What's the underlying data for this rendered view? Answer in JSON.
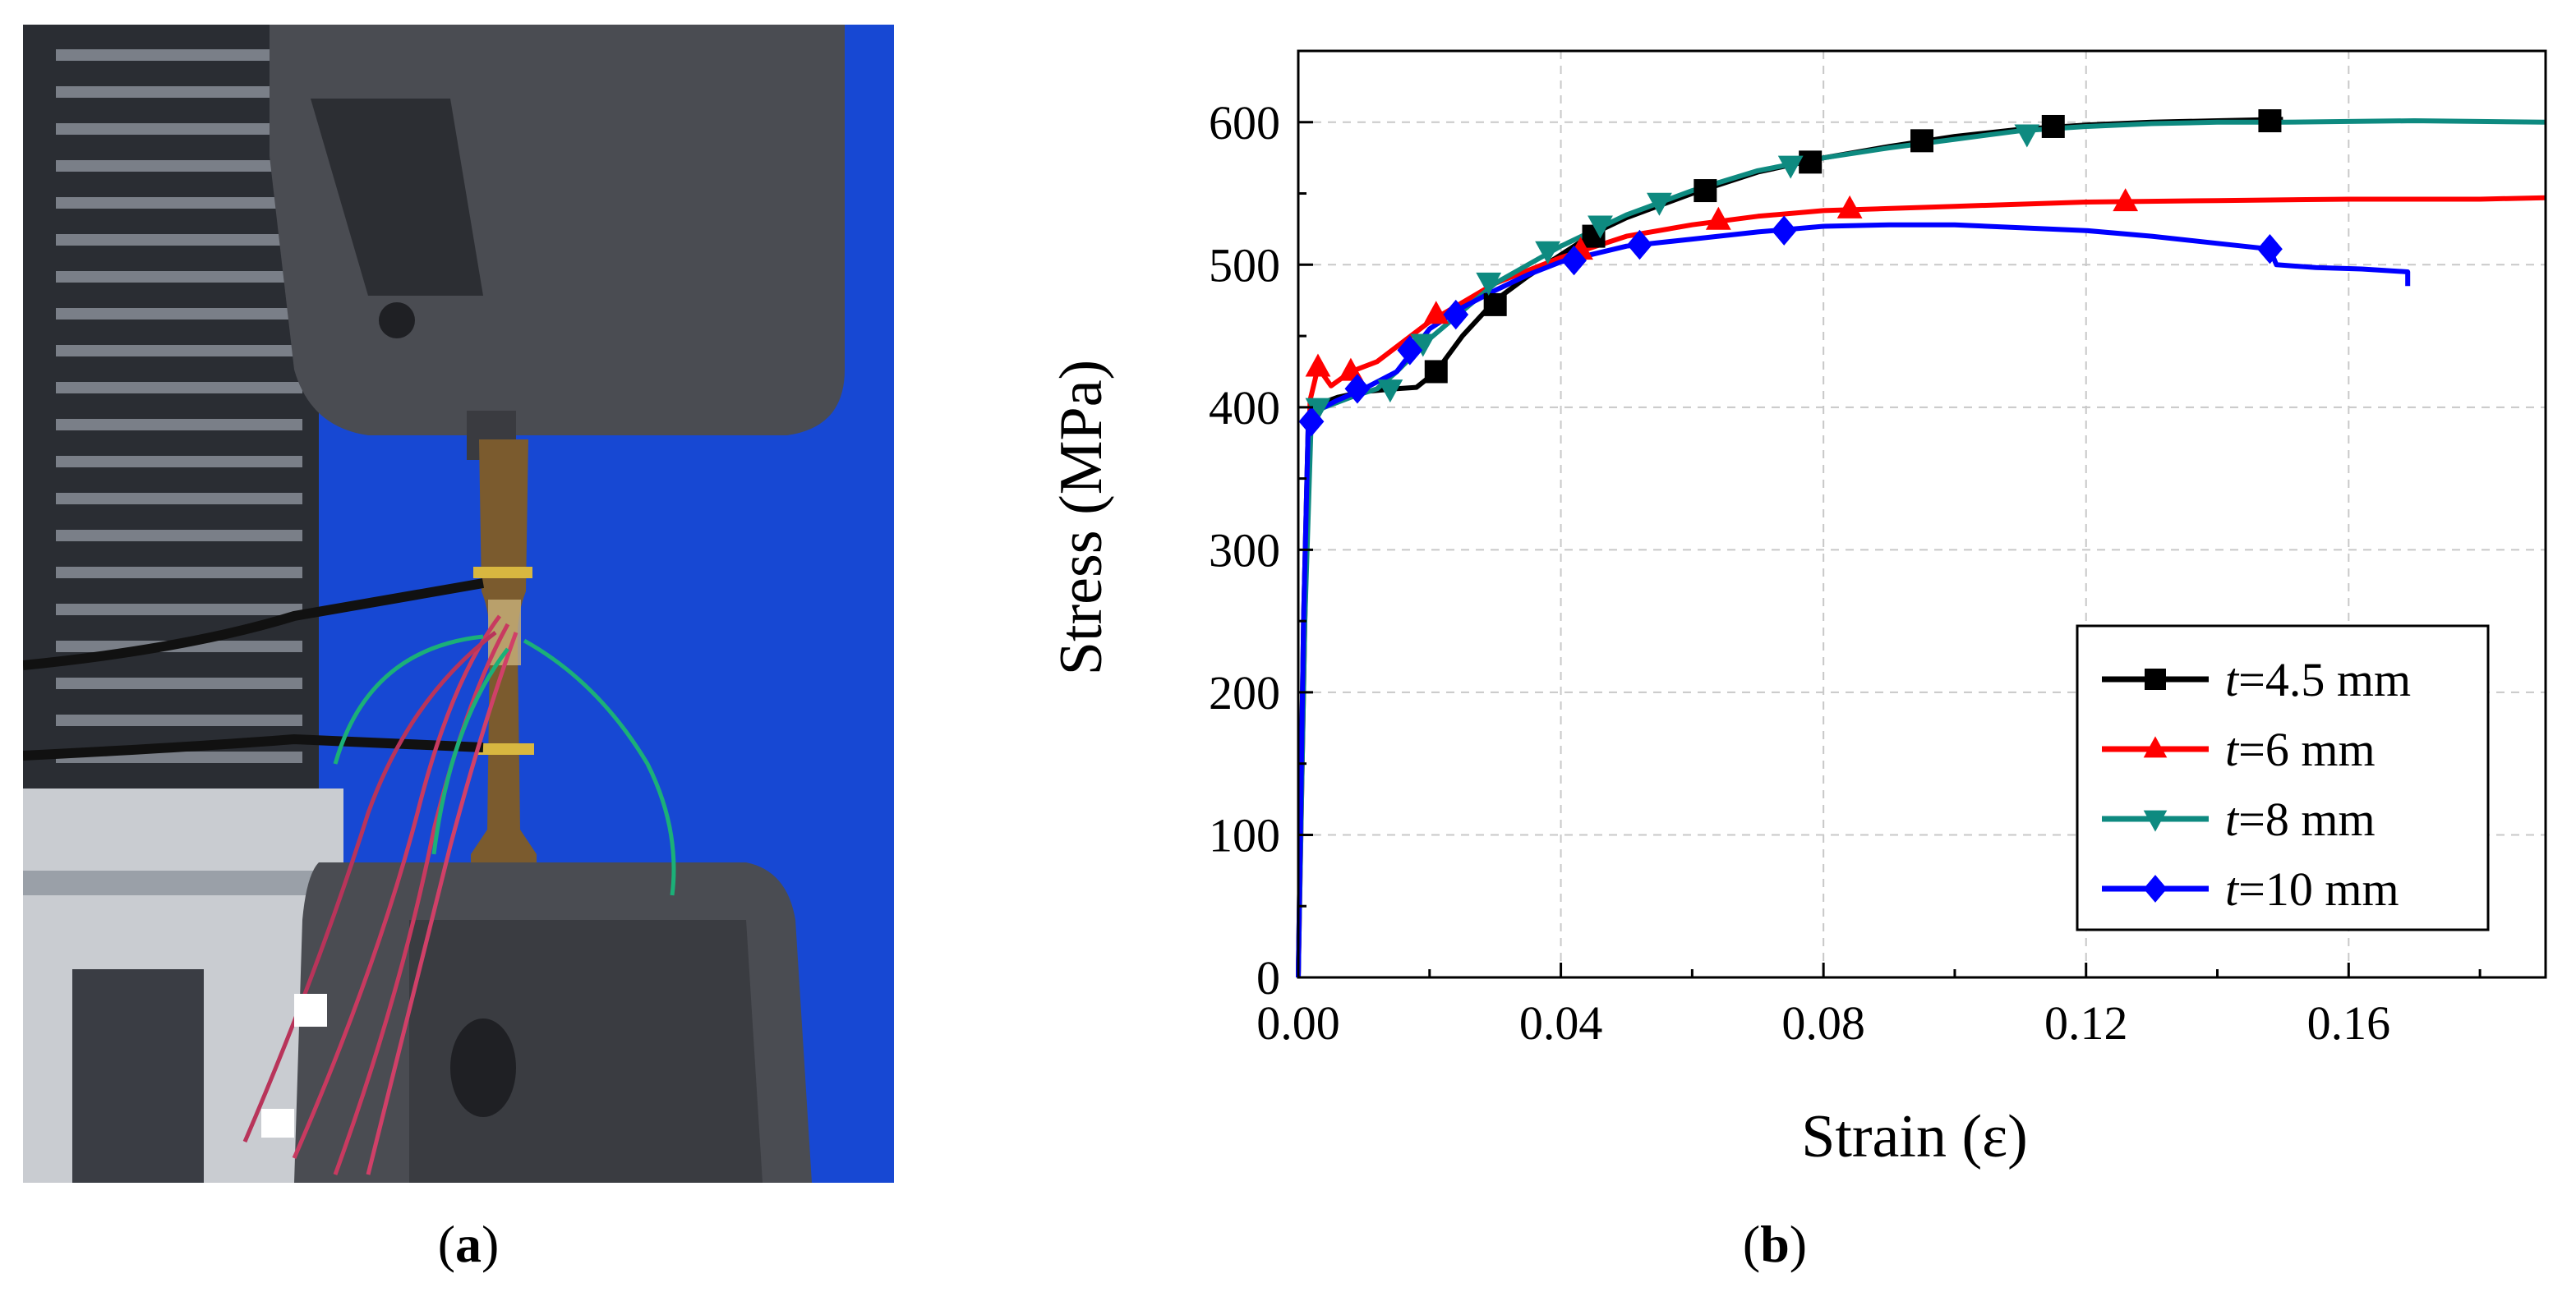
{
  "captions": {
    "a": "a",
    "b": "b",
    "open": "(",
    "close": ")"
  },
  "photo": {
    "description_icon": "tensile-test-photo"
  },
  "chart_data": {
    "type": "line",
    "title": "",
    "xlabel": "Strain (ε)",
    "ylabel": "Stress (MPa)",
    "xlim": [
      0,
      0.19
    ],
    "ylim": [
      0,
      650
    ],
    "x_ticks": [
      0.0,
      0.04,
      0.08,
      0.12,
      0.16
    ],
    "x_tick_labels": [
      "0.00",
      "0.04",
      "0.08",
      "0.12",
      "0.16"
    ],
    "y_ticks": [
      0,
      100,
      200,
      300,
      400,
      500,
      600
    ],
    "y_tick_labels": [
      "0",
      "100",
      "200",
      "300",
      "400",
      "500",
      "600"
    ],
    "grid": true,
    "legend_position": "bottom-right",
    "series": [
      {
        "name": "t=4.5 mm",
        "italic": "t",
        "rest": "=4.5 mm",
        "color": "#000000",
        "marker": "square",
        "points": [
          [
            0,
            0
          ],
          [
            0.0008,
            250
          ],
          [
            0.0015,
            385
          ],
          [
            0.003,
            402
          ],
          [
            0.006,
            407
          ],
          [
            0.01,
            411
          ],
          [
            0.015,
            413
          ],
          [
            0.018,
            414
          ],
          [
            0.021,
            425
          ],
          [
            0.025,
            450
          ],
          [
            0.03,
            475
          ],
          [
            0.035,
            492
          ],
          [
            0.04,
            507
          ],
          [
            0.045,
            522
          ],
          [
            0.05,
            533
          ],
          [
            0.06,
            550
          ],
          [
            0.07,
            565
          ],
          [
            0.08,
            575
          ],
          [
            0.09,
            583
          ],
          [
            0.1,
            590
          ],
          [
            0.11,
            595
          ],
          [
            0.12,
            598
          ],
          [
            0.13,
            600
          ],
          [
            0.14,
            601
          ],
          [
            0.15,
            602
          ]
        ],
        "markers": [
          [
            0.021,
            425
          ],
          [
            0.03,
            472
          ],
          [
            0.045,
            520
          ],
          [
            0.062,
            552
          ],
          [
            0.078,
            572
          ],
          [
            0.095,
            587
          ],
          [
            0.115,
            597
          ],
          [
            0.148,
            601
          ]
        ]
      },
      {
        "name": "t=6 mm",
        "italic": "t",
        "rest": "=6 mm",
        "color": "#ff0000",
        "marker": "triangle-up",
        "points": [
          [
            0,
            0
          ],
          [
            0.001,
            250
          ],
          [
            0.0018,
            405
          ],
          [
            0.003,
            428
          ],
          [
            0.005,
            415
          ],
          [
            0.008,
            425
          ],
          [
            0.012,
            432
          ],
          [
            0.02,
            460
          ],
          [
            0.03,
            487
          ],
          [
            0.04,
            505
          ],
          [
            0.05,
            520
          ],
          [
            0.06,
            528
          ],
          [
            0.07,
            534
          ],
          [
            0.08,
            538
          ],
          [
            0.1,
            541
          ],
          [
            0.12,
            544
          ],
          [
            0.14,
            545
          ],
          [
            0.16,
            546
          ],
          [
            0.18,
            546
          ],
          [
            0.19,
            547
          ]
        ],
        "markers": [
          [
            0.003,
            428
          ],
          [
            0.008,
            425
          ],
          [
            0.021,
            465
          ],
          [
            0.043,
            510
          ],
          [
            0.064,
            531
          ],
          [
            0.084,
            539
          ],
          [
            0.126,
            544
          ]
        ]
      },
      {
        "name": "t=8 mm",
        "italic": "t",
        "rest": "=8 mm",
        "color": "#0e8a80",
        "marker": "triangle-down",
        "points": [
          [
            0,
            0
          ],
          [
            0.001,
            250
          ],
          [
            0.002,
            395
          ],
          [
            0.004,
            400
          ],
          [
            0.008,
            407
          ],
          [
            0.012,
            413
          ],
          [
            0.015,
            425
          ],
          [
            0.02,
            448
          ],
          [
            0.03,
            487
          ],
          [
            0.04,
            513
          ],
          [
            0.05,
            535
          ],
          [
            0.06,
            552
          ],
          [
            0.07,
            566
          ],
          [
            0.08,
            575
          ],
          [
            0.09,
            582
          ],
          [
            0.1,
            588
          ],
          [
            0.11,
            594
          ],
          [
            0.12,
            597
          ],
          [
            0.13,
            599
          ],
          [
            0.14,
            600
          ],
          [
            0.15,
            600
          ],
          [
            0.17,
            601
          ],
          [
            0.19,
            600
          ]
        ],
        "markers": [
          [
            0.003,
            400
          ],
          [
            0.014,
            413
          ],
          [
            0.019,
            445
          ],
          [
            0.029,
            488
          ],
          [
            0.038,
            510
          ],
          [
            0.046,
            528
          ],
          [
            0.055,
            544
          ],
          [
            0.075,
            570
          ],
          [
            0.111,
            592
          ]
        ]
      },
      {
        "name": "t=10 mm",
        "italic": "t",
        "rest": "=10 mm",
        "color": "#0000ff",
        "marker": "diamond",
        "points": [
          [
            0,
            0
          ],
          [
            0.0008,
            250
          ],
          [
            0.0015,
            385
          ],
          [
            0.003,
            398
          ],
          [
            0.006,
            405
          ],
          [
            0.01,
            413
          ],
          [
            0.015,
            425
          ],
          [
            0.02,
            455
          ],
          [
            0.025,
            470
          ],
          [
            0.03,
            482
          ],
          [
            0.035,
            493
          ],
          [
            0.04,
            502
          ],
          [
            0.05,
            513
          ],
          [
            0.06,
            518
          ],
          [
            0.07,
            523
          ],
          [
            0.08,
            527
          ],
          [
            0.09,
            528
          ],
          [
            0.1,
            528
          ],
          [
            0.11,
            526
          ],
          [
            0.12,
            524
          ],
          [
            0.13,
            520
          ],
          [
            0.14,
            515
          ],
          [
            0.148,
            511
          ],
          [
            0.149,
            500
          ],
          [
            0.155,
            498
          ],
          [
            0.162,
            497
          ],
          [
            0.169,
            495
          ],
          [
            0.169,
            485
          ]
        ],
        "markers": [
          [
            0.002,
            390
          ],
          [
            0.009,
            413
          ],
          [
            0.017,
            440
          ],
          [
            0.024,
            465
          ],
          [
            0.042,
            503
          ],
          [
            0.052,
            514
          ],
          [
            0.074,
            524
          ],
          [
            0.148,
            511
          ]
        ]
      }
    ]
  }
}
